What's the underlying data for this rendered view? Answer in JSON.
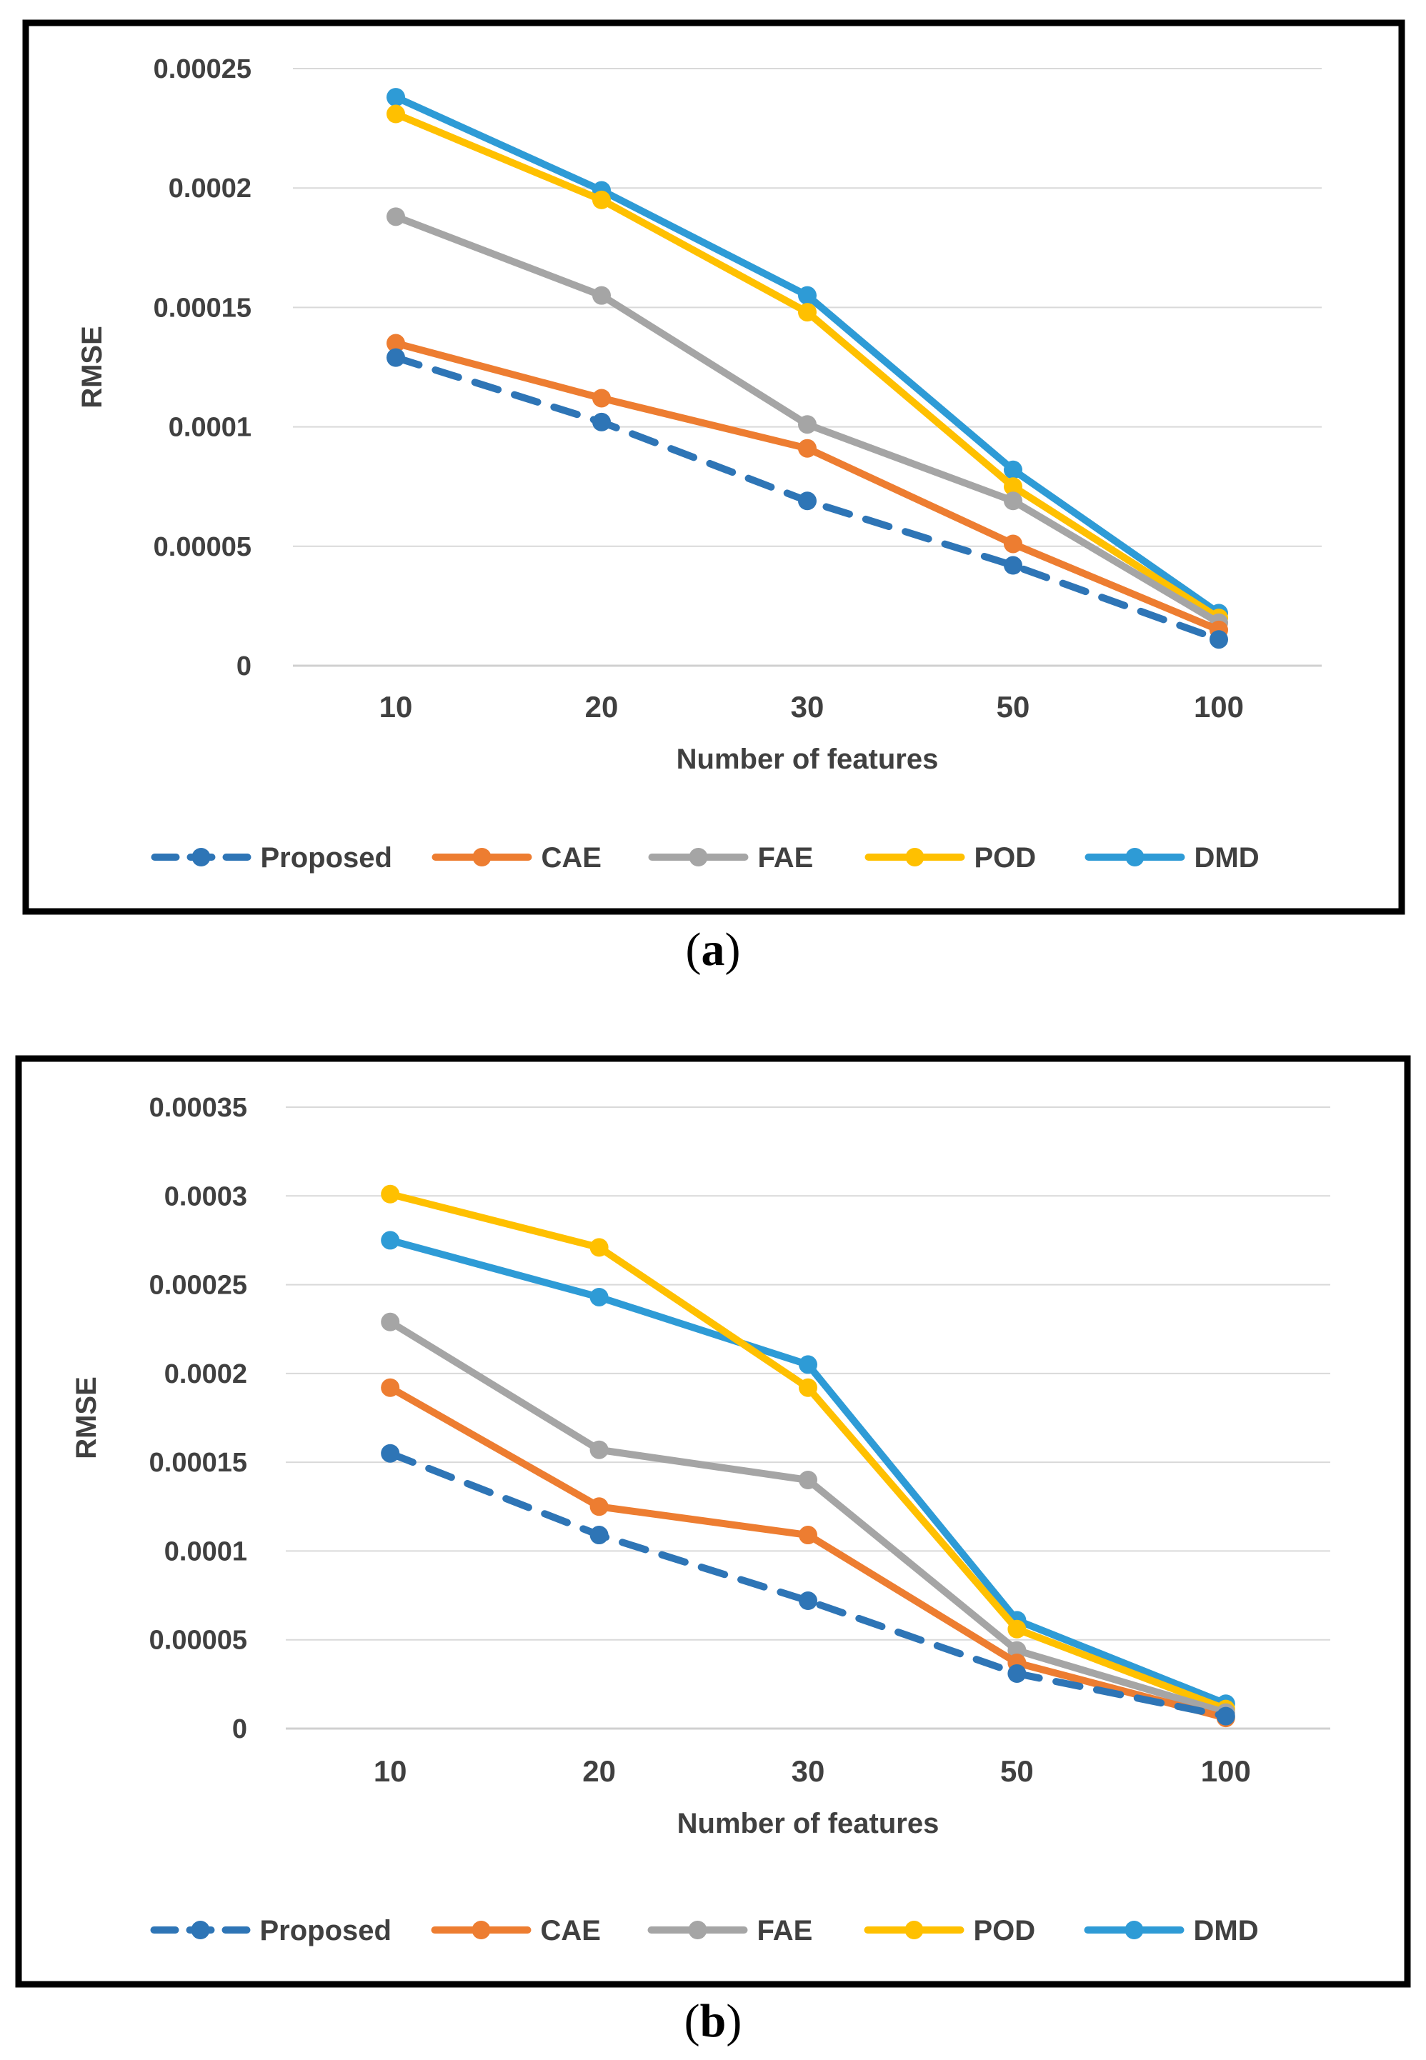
{
  "chart_data": [
    {
      "type": "line",
      "panel": "a",
      "categories": [
        "10",
        "20",
        "30",
        "50",
        "100"
      ],
      "xlabel": "Number of features",
      "ylabel": "RMSE",
      "ylim": [
        0,
        0.00025
      ],
      "yticks": [
        "0",
        "0.00005",
        "0.0001",
        "0.00015",
        "0.0002",
        "0.00025"
      ],
      "grid": true,
      "legend_position": "bottom",
      "series": [
        {
          "name": "Proposed",
          "color": "#2E75B6",
          "dashed": true,
          "values": [
            0.000129,
            0.000102,
            6.9e-05,
            4.2e-05,
            1.1e-05
          ]
        },
        {
          "name": "CAE",
          "color": "#ED7D31",
          "dashed": false,
          "values": [
            0.000135,
            0.000112,
            9.1e-05,
            5.1e-05,
            1.5e-05
          ]
        },
        {
          "name": "FAE",
          "color": "#A5A5A5",
          "dashed": false,
          "values": [
            0.000188,
            0.000155,
            0.000101,
            6.9e-05,
            1.8e-05
          ]
        },
        {
          "name": "POD",
          "color": "#FFC000",
          "dashed": false,
          "values": [
            0.000231,
            0.000195,
            0.000148,
            7.5e-05,
            2e-05
          ]
        },
        {
          "name": "DMD",
          "color": "#2E9BD6",
          "dashed": false,
          "values": [
            0.000238,
            0.000199,
            0.000155,
            8.2e-05,
            2.2e-05
          ]
        }
      ]
    },
    {
      "type": "line",
      "panel": "b",
      "categories": [
        "10",
        "20",
        "30",
        "50",
        "100"
      ],
      "xlabel": "Number of features",
      "ylabel": "RMSE",
      "ylim": [
        0,
        0.00035
      ],
      "yticks": [
        "0",
        "0.00005",
        "0.0001",
        "0.00015",
        "0.0002",
        "0.00025",
        "0.0003",
        "0.00035"
      ],
      "grid": true,
      "legend_position": "bottom",
      "series": [
        {
          "name": "Proposed",
          "color": "#2E75B6",
          "dashed": true,
          "values": [
            0.000155,
            0.000109,
            7.2e-05,
            3.1e-05,
            7e-06
          ]
        },
        {
          "name": "CAE",
          "color": "#ED7D31",
          "dashed": false,
          "values": [
            0.000192,
            0.000125,
            0.000109,
            3.7e-05,
            6e-06
          ]
        },
        {
          "name": "FAE",
          "color": "#A5A5A5",
          "dashed": false,
          "values": [
            0.000229,
            0.000157,
            0.00014,
            4.4e-05,
            9e-06
          ]
        },
        {
          "name": "POD",
          "color": "#FFC000",
          "dashed": false,
          "values": [
            0.000301,
            0.000271,
            0.000192,
            5.6e-05,
            1.1e-05
          ]
        },
        {
          "name": "DMD",
          "color": "#2E9BD6",
          "dashed": false,
          "values": [
            0.000275,
            0.000243,
            0.000205,
            6.1e-05,
            1.4e-05
          ]
        }
      ]
    }
  ],
  "captions": {
    "a": "a",
    "b": "b"
  }
}
